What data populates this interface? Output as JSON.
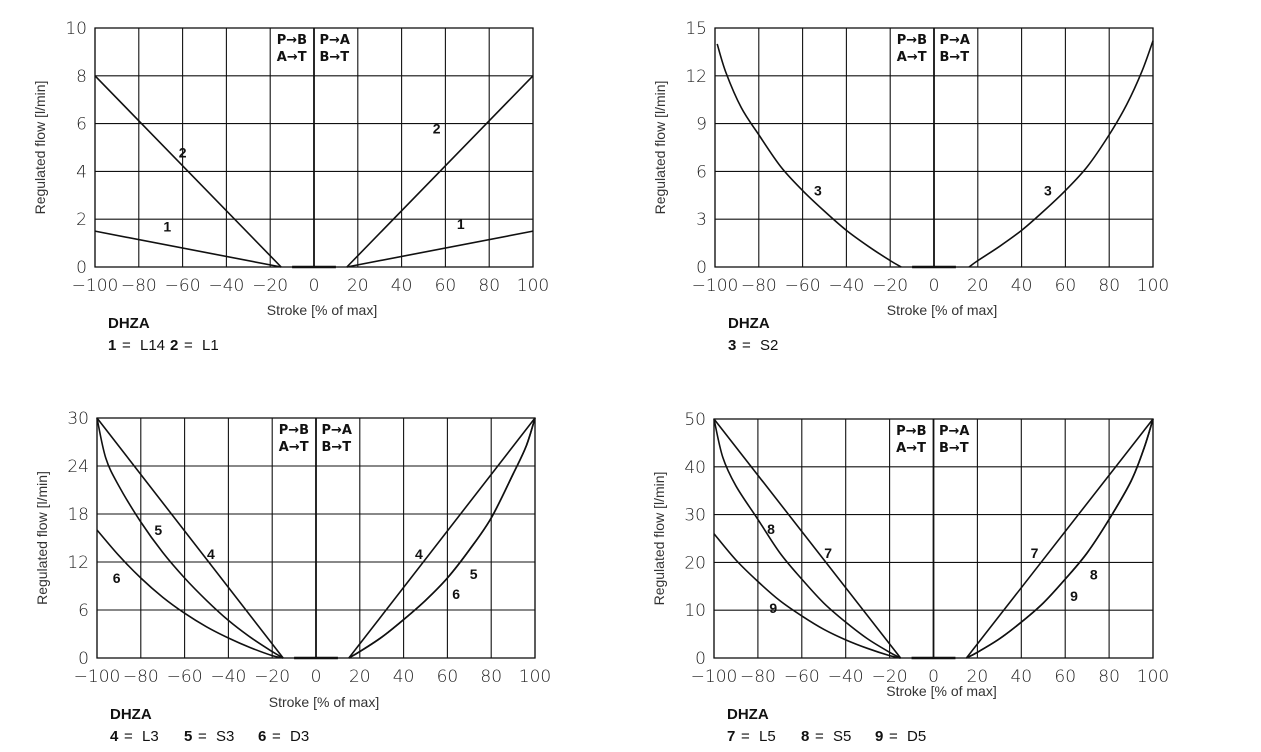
{
  "chart_data": [
    {
      "type": "line",
      "xlabel": "Stroke [% of max]",
      "ylabel": "Regulated flow [l/min]",
      "xlim": [
        -100,
        100
      ],
      "ylim": [
        0,
        10
      ],
      "grid": true,
      "xticks": [
        "−100",
        "−80",
        "−60",
        "−40",
        "−20",
        "0",
        "20",
        "40",
        "60",
        "80",
        "100"
      ],
      "xtick_values": [
        -100,
        -80,
        -60,
        -40,
        -20,
        0,
        20,
        40,
        60,
        80,
        100
      ],
      "yticks": [
        "0",
        "2",
        "4",
        "6",
        "8",
        "10"
      ],
      "ytick_values": [
        0,
        2,
        4,
        6,
        8,
        10
      ],
      "flow_directions": {
        "left": [
          "P→B",
          "A→T"
        ],
        "right": [
          "P→A",
          "B→T"
        ]
      },
      "series": [
        {
          "name": "1",
          "left": [
            [
              -100,
              1.5
            ],
            [
              -15,
              0
            ]
          ],
          "right": [
            [
              15,
              0
            ],
            [
              100,
              1.5
            ]
          ]
        },
        {
          "name": "2",
          "left": [
            [
              -100,
              8
            ],
            [
              -15,
              0
            ]
          ],
          "right": [
            [
              15,
              0
            ],
            [
              100,
              8
            ]
          ]
        }
      ],
      "labels": [
        {
          "text": "2",
          "x": -60,
          "y": 4.8
        },
        {
          "text": "2",
          "x": 56,
          "y": 5.8
        },
        {
          "text": "1",
          "x": -67,
          "y": 1.7
        },
        {
          "text": "1",
          "x": 67,
          "y": 1.8
        }
      ],
      "legend": {
        "title": "DHZA",
        "items": [
          {
            "key": "1",
            "value": "L14"
          },
          {
            "key": "2",
            "value": "L1"
          }
        ]
      }
    },
    {
      "type": "line",
      "xlabel": "Stroke [% of max]",
      "ylabel": "Regulated flow [l/min]",
      "xlim": [
        -100,
        100
      ],
      "ylim": [
        0,
        15
      ],
      "grid": true,
      "xticks": [
        "−100",
        "−80",
        "−60",
        "−40",
        "−20",
        "0",
        "20",
        "40",
        "60",
        "80",
        "100"
      ],
      "xtick_values": [
        -100,
        -80,
        -60,
        -40,
        -20,
        0,
        20,
        40,
        60,
        80,
        100
      ],
      "yticks": [
        "0",
        "3",
        "6",
        "9",
        "12",
        "15"
      ],
      "ytick_values": [
        0,
        3,
        6,
        9,
        12,
        15
      ],
      "flow_directions": {
        "left": [
          "P→B",
          "A→T"
        ],
        "right": [
          "P→A",
          "B→T"
        ]
      },
      "series": [
        {
          "name": "3",
          "left": [
            [
              -99,
              14
            ],
            [
              -95,
              12.2
            ],
            [
              -88,
              10
            ],
            [
              -80,
              8.3
            ],
            [
              -70,
              6.3
            ],
            [
              -60,
              4.8
            ],
            [
              -50,
              3.5
            ],
            [
              -40,
              2.3
            ],
            [
              -30,
              1.3
            ],
            [
              -20,
              0.4
            ],
            [
              -15,
              0
            ]
          ],
          "right": [
            [
              16,
              0
            ],
            [
              20,
              0.4
            ],
            [
              30,
              1.3
            ],
            [
              40,
              2.3
            ],
            [
              50,
              3.5
            ],
            [
              60,
              4.8
            ],
            [
              70,
              6.3
            ],
            [
              80,
              8.3
            ],
            [
              88,
              10.2
            ],
            [
              95,
              12.3
            ],
            [
              100,
              14.2
            ]
          ]
        }
      ],
      "labels": [
        {
          "text": "3",
          "x": -53,
          "y": 4.8
        },
        {
          "text": "3",
          "x": 52,
          "y": 4.8
        }
      ],
      "legend": {
        "title": "DHZA",
        "items": [
          {
            "key": "3",
            "value": "S2"
          }
        ]
      }
    },
    {
      "type": "line",
      "xlabel": "Stroke [% of max]",
      "ylabel": "Regulated flow [l/min]",
      "xlim": [
        -100,
        100
      ],
      "ylim": [
        0,
        30
      ],
      "grid": true,
      "xticks": [
        "−100",
        "−80",
        "−60",
        "−40",
        "−20",
        "0",
        "20",
        "40",
        "60",
        "80",
        "100"
      ],
      "xtick_values": [
        -100,
        -80,
        -60,
        -40,
        -20,
        0,
        20,
        40,
        60,
        80,
        100
      ],
      "yticks": [
        "0",
        "6",
        "12",
        "18",
        "24",
        "30"
      ],
      "ytick_values": [
        0,
        6,
        12,
        18,
        24,
        30
      ],
      "flow_directions": {
        "left": [
          "P→B",
          "A→T"
        ],
        "right": [
          "P→A",
          "B→T"
        ]
      },
      "series": [
        {
          "name": "4",
          "left": [
            [
              -100,
              30
            ],
            [
              -15,
              0
            ]
          ],
          "right": [
            [
              15,
              0
            ],
            [
              100,
              30
            ]
          ]
        },
        {
          "name": "5",
          "left": [
            [
              -100,
              30
            ],
            [
              -96,
              25
            ],
            [
              -90,
              21.5
            ],
            [
              -80,
              17
            ],
            [
              -70,
              13.2
            ],
            [
              -60,
              10
            ],
            [
              -50,
              7.2
            ],
            [
              -40,
              4.7
            ],
            [
              -30,
              2.6
            ],
            [
              -20,
              0.8
            ],
            [
              -15,
              0
            ]
          ],
          "right": [
            [
              15,
              0
            ],
            [
              20,
              0.8
            ],
            [
              30,
              2.6
            ],
            [
              40,
              4.8
            ],
            [
              50,
              7.2
            ],
            [
              60,
              10
            ],
            [
              70,
              13.5
            ],
            [
              80,
              17.5
            ],
            [
              90,
              23
            ],
            [
              96,
              26.5
            ],
            [
              100,
              30
            ]
          ]
        },
        {
          "name": "6",
          "left": [
            [
              -100,
              16
            ],
            [
              -90,
              12.8
            ],
            [
              -80,
              10
            ],
            [
              -70,
              7.6
            ],
            [
              -60,
              5.6
            ],
            [
              -50,
              3.9
            ],
            [
              -40,
              2.5
            ],
            [
              -30,
              1.3
            ],
            [
              -20,
              0.3
            ],
            [
              -15,
              0
            ]
          ],
          "right": [
            [
              15,
              0
            ],
            [
              20,
              0.8
            ],
            [
              30,
              2.6
            ],
            [
              40,
              4.8
            ],
            [
              50,
              7.2
            ],
            [
              60,
              10
            ],
            [
              70,
              13.5
            ],
            [
              80,
              17.5
            ],
            [
              90,
              23
            ],
            [
              96,
              26.5
            ],
            [
              100,
              30
            ]
          ]
        }
      ],
      "labels": [
        {
          "text": "4",
          "x": -48,
          "y": 13
        },
        {
          "text": "4",
          "x": 47,
          "y": 13
        },
        {
          "text": "5",
          "x": -72,
          "y": 16
        },
        {
          "text": "5",
          "x": 72,
          "y": 10.5
        },
        {
          "text": "6",
          "x": -91,
          "y": 10
        },
        {
          "text": "6",
          "x": 64,
          "y": 8
        }
      ],
      "legend": {
        "title": "DHZA",
        "items": [
          {
            "key": "4",
            "value": "L3"
          },
          {
            "key": "5",
            "value": "S3"
          },
          {
            "key": "6",
            "value": "D3"
          }
        ]
      }
    },
    {
      "type": "line",
      "xlabel": "Stroke [% of max]",
      "ylabel": "Regulated flow [l/min]",
      "xlim": [
        -100,
        100
      ],
      "ylim": [
        0,
        50
      ],
      "grid": true,
      "xticks": [
        "−100",
        "−80",
        "−60",
        "−40",
        "−20",
        "0",
        "20",
        "40",
        "60",
        "80",
        "100"
      ],
      "xtick_values": [
        -100,
        -80,
        -60,
        -40,
        -20,
        0,
        20,
        40,
        60,
        80,
        100
      ],
      "yticks": [
        "0",
        "10",
        "20",
        "30",
        "40",
        "50"
      ],
      "ytick_values": [
        0,
        10,
        20,
        30,
        40,
        50
      ],
      "flow_directions": {
        "left": [
          "P→B",
          "A→T"
        ],
        "right": [
          "P→A",
          "B→T"
        ]
      },
      "series": [
        {
          "name": "7",
          "left": [
            [
              -100,
              50
            ],
            [
              -15,
              0
            ]
          ],
          "right": [
            [
              15,
              0
            ],
            [
              100,
              50
            ]
          ]
        },
        {
          "name": "8",
          "left": [
            [
              -100,
              50
            ],
            [
              -96,
              42
            ],
            [
              -90,
              36
            ],
            [
              -80,
              29
            ],
            [
              -70,
              22
            ],
            [
              -60,
              16.5
            ],
            [
              -50,
              11.5
            ],
            [
              -40,
              7.5
            ],
            [
              -30,
              4
            ],
            [
              -20,
              1.2
            ],
            [
              -15,
              0
            ]
          ],
          "right": [
            [
              15,
              0
            ],
            [
              20,
              1.2
            ],
            [
              30,
              4
            ],
            [
              40,
              7.5
            ],
            [
              50,
              11.5
            ],
            [
              60,
              16.5
            ],
            [
              70,
              22
            ],
            [
              80,
              29
            ],
            [
              90,
              37
            ],
            [
              96,
              44
            ],
            [
              100,
              50
            ]
          ]
        },
        {
          "name": "9",
          "left": [
            [
              -100,
              26
            ],
            [
              -90,
              20.5
            ],
            [
              -80,
              16
            ],
            [
              -70,
              12
            ],
            [
              -60,
              8.8
            ],
            [
              -50,
              6
            ],
            [
              -40,
              3.8
            ],
            [
              -30,
              2
            ],
            [
              -20,
              0.5
            ],
            [
              -15,
              0
            ]
          ],
          "right": [
            [
              15,
              0
            ],
            [
              20,
              1.2
            ],
            [
              30,
              4
            ],
            [
              40,
              7.5
            ],
            [
              50,
              11.5
            ],
            [
              60,
              16.5
            ],
            [
              70,
              22
            ],
            [
              80,
              29
            ],
            [
              90,
              37
            ],
            [
              96,
              44
            ],
            [
              100,
              50
            ]
          ]
        }
      ],
      "labels": [
        {
          "text": "7",
          "x": -48,
          "y": 22
        },
        {
          "text": "7",
          "x": 46,
          "y": 22
        },
        {
          "text": "8",
          "x": -74,
          "y": 27
        },
        {
          "text": "8",
          "x": 73,
          "y": 17.5
        },
        {
          "text": "9",
          "x": -73,
          "y": 10.5
        },
        {
          "text": "9",
          "x": 64,
          "y": 13
        }
      ],
      "legend": {
        "title": "DHZA",
        "items": [
          {
            "key": "7",
            "value": "L5"
          },
          {
            "key": "8",
            "value": "S5"
          },
          {
            "key": "9",
            "value": "D5"
          }
        ]
      }
    }
  ]
}
